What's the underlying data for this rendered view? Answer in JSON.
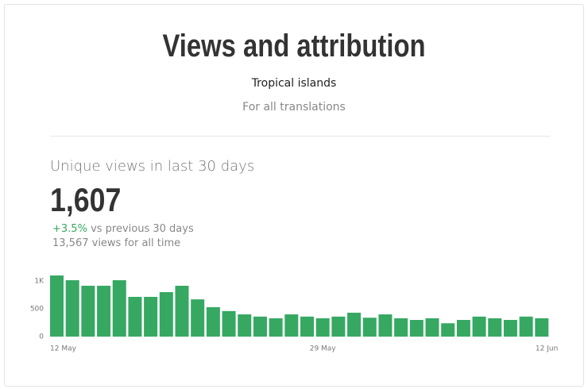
{
  "header": {
    "title": "Views and attribution",
    "subtitle": "Tropical islands",
    "note": "For all translations"
  },
  "stats": {
    "label": "Unique views in last 30 days",
    "value": "1,607",
    "change": "+3.5%",
    "change_text": "vs previous 30 days",
    "all_time": "13,567 views for all time"
  },
  "chart_data": {
    "type": "bar",
    "color": "#36a862",
    "categories": [
      "12 May",
      null,
      null,
      null,
      null,
      null,
      null,
      null,
      null,
      null,
      null,
      null,
      null,
      null,
      null,
      null,
      null,
      "29 May",
      null,
      null,
      null,
      null,
      null,
      null,
      null,
      null,
      null,
      null,
      null,
      null,
      null,
      "12 Jun"
    ],
    "values": [
      1100,
      1015,
      915,
      915,
      1015,
      715,
      715,
      800,
      915,
      670,
      530,
      460,
      400,
      360,
      330,
      400,
      360,
      330,
      360,
      430,
      340,
      400,
      330,
      300,
      330,
      240,
      300,
      360,
      330,
      300,
      360,
      330
    ],
    "ylim": [
      0,
      1100
    ],
    "yticks": [
      0,
      500,
      {
        "value": 1000,
        "label": "1K"
      }
    ]
  }
}
